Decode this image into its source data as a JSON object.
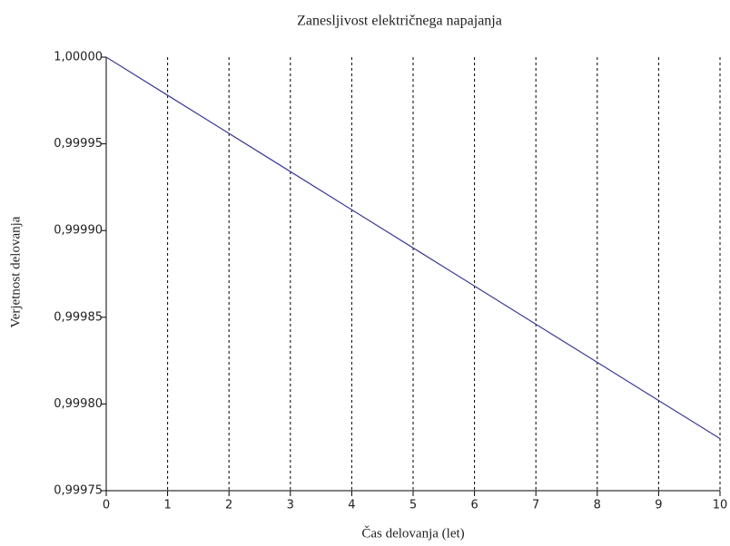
{
  "chart_data": {
    "type": "line",
    "title": "Zanesljivost električnega napajanja",
    "x_label": "Čas delovanja (let)",
    "y_label": "Verjetnost delovanja",
    "x": [
      0,
      1,
      2,
      3,
      4,
      5,
      6,
      7,
      8,
      9,
      10
    ],
    "series": [
      {
        "name": "Verjetnost delovanja",
        "color": "#3a3a96",
        "values": [
          1.0,
          0.999978,
          0.999956,
          0.999934,
          0.999912,
          0.99989,
          0.999868,
          0.999846,
          0.999824,
          0.999802,
          0.99978
        ]
      }
    ],
    "xlim": [
      0,
      10
    ],
    "xticks": [
      0,
      1,
      2,
      3,
      4,
      5,
      6,
      7,
      8,
      9,
      10
    ],
    "ylim": [
      0.99975,
      1.0
    ],
    "yticks": [
      {
        "value": 0.99975,
        "label": "0,99975"
      },
      {
        "value": 0.9998,
        "label": "0,99980"
      },
      {
        "value": 0.99985,
        "label": "0,99985"
      },
      {
        "value": 0.9999,
        "label": "0,99990"
      },
      {
        "value": 0.99995,
        "label": "0,99995"
      },
      {
        "value": 1.0,
        "label": "1,00000"
      }
    ],
    "grid": "x"
  }
}
